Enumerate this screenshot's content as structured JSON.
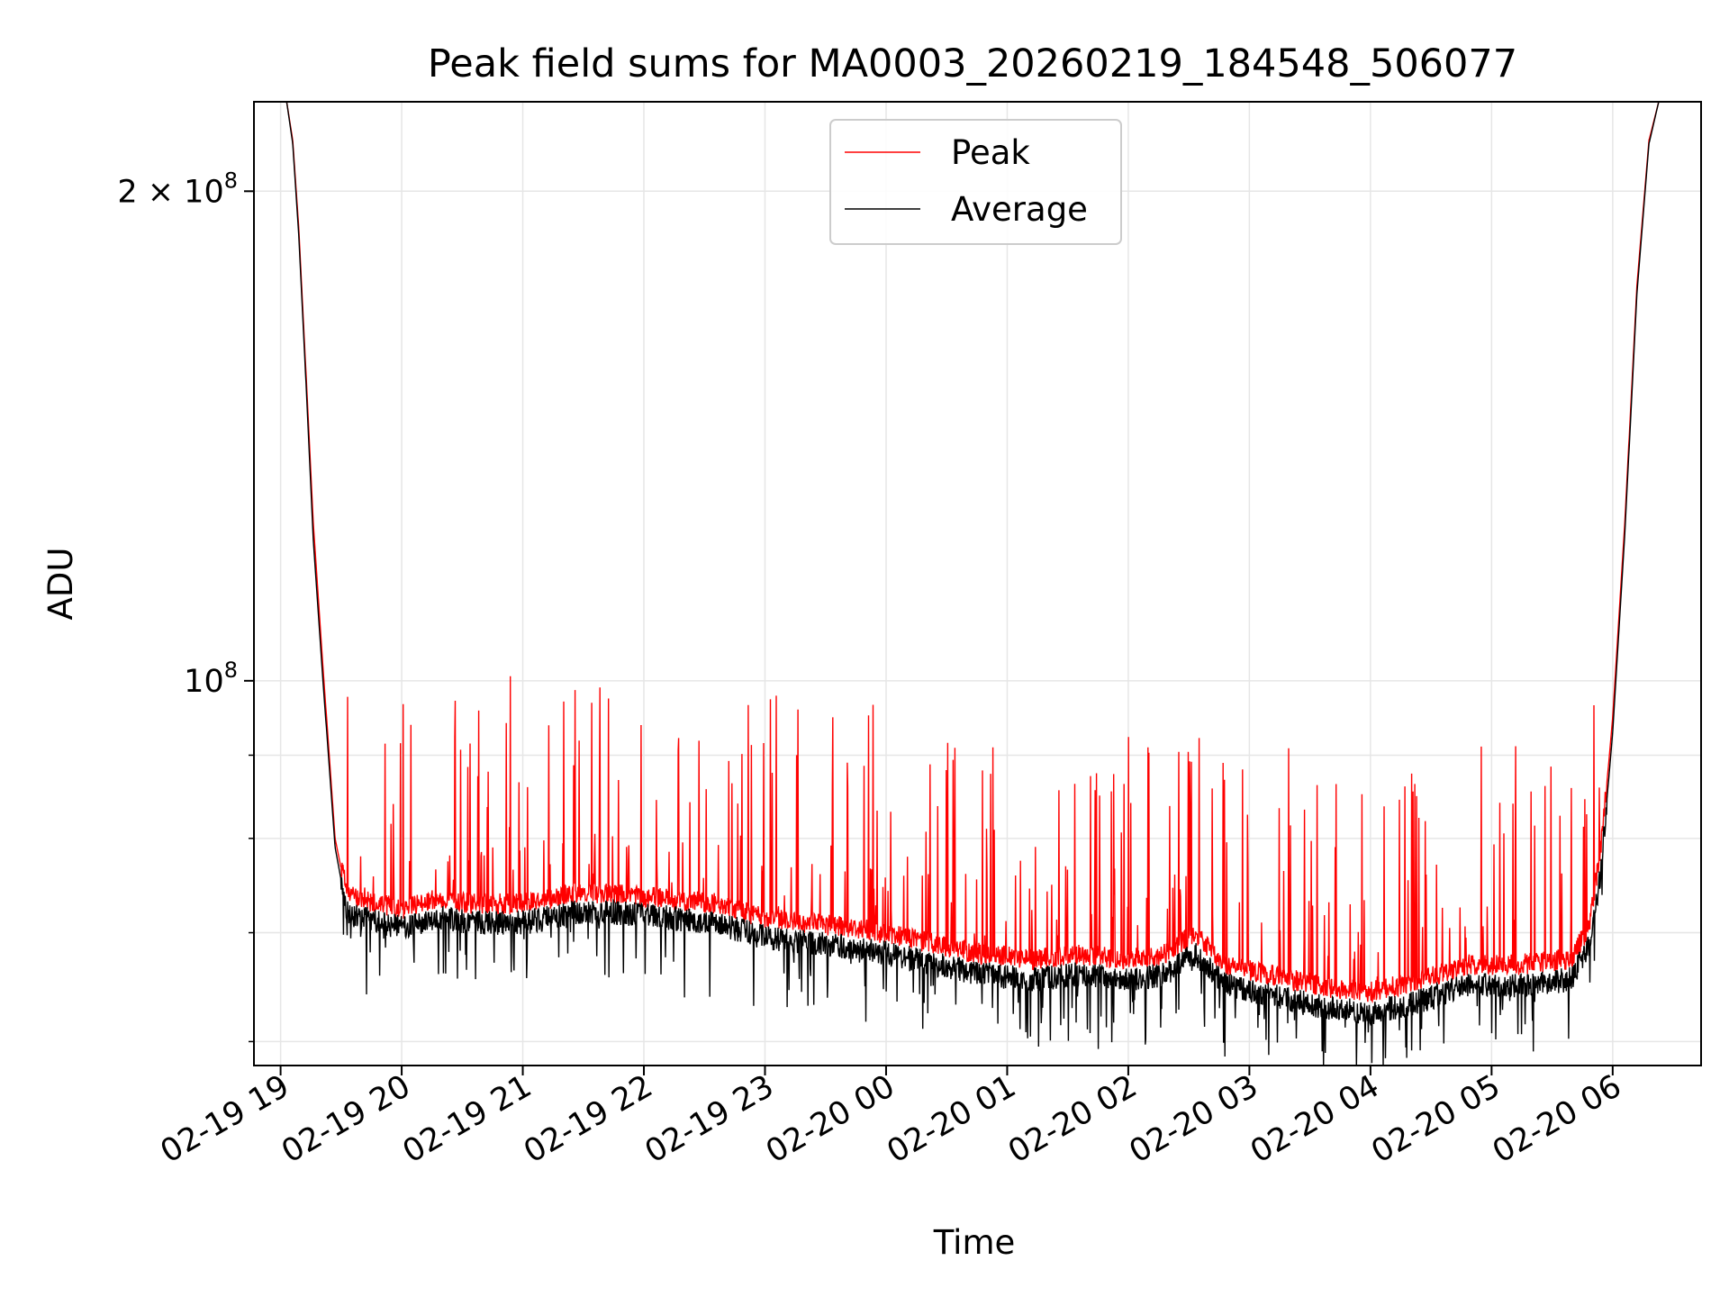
{
  "chart_data": {
    "type": "line",
    "title": "Peak field sums for MA0003_20260219_184548_506077",
    "xlabel": "Time",
    "ylabel": "ADU",
    "yscale": "log",
    "ylim": [
      58000000,
      227000000
    ],
    "xlim": [
      18.78,
      30.73
    ],
    "grid": true,
    "legend_position": "top-center",
    "x_ticks": [
      {
        "value": 19,
        "label": "02-19 19"
      },
      {
        "value": 20,
        "label": "02-19 20"
      },
      {
        "value": 21,
        "label": "02-19 21"
      },
      {
        "value": 22,
        "label": "02-19 22"
      },
      {
        "value": 23,
        "label": "02-19 23"
      },
      {
        "value": 24,
        "label": "02-20 00"
      },
      {
        "value": 25,
        "label": "02-20 01"
      },
      {
        "value": 26,
        "label": "02-20 02"
      },
      {
        "value": 27,
        "label": "02-20 03"
      },
      {
        "value": 28,
        "label": "02-20 04"
      },
      {
        "value": 29,
        "label": "02-20 05"
      },
      {
        "value": 30,
        "label": "02-20 06"
      }
    ],
    "y_major_ticks": [
      {
        "value": 100000000,
        "base": "10",
        "exp": "8"
      },
      {
        "value": 200000000,
        "base": "2 × 10",
        "exp": "8"
      }
    ],
    "y_minor_ticks": [
      60000000,
      70000000,
      80000000,
      90000000
    ],
    "series": [
      {
        "name": "Peak",
        "color": "#ff0000",
        "baseline_points": [
          [
            18.78,
            227000000
          ],
          [
            19.05,
            227000000
          ],
          [
            19.1,
            215000000
          ],
          [
            19.15,
            190000000
          ],
          [
            19.2,
            160000000
          ],
          [
            19.27,
            125000000
          ],
          [
            19.35,
            102000000
          ],
          [
            19.45,
            80000000
          ],
          [
            19.55,
            73500000
          ],
          [
            19.8,
            72500000
          ],
          [
            20.0,
            72000000
          ],
          [
            20.3,
            73000000
          ],
          [
            20.6,
            72500000
          ],
          [
            21.0,
            72500000
          ],
          [
            21.4,
            73500000
          ],
          [
            21.8,
            73500000
          ],
          [
            22.2,
            73000000
          ],
          [
            22.6,
            72500000
          ],
          [
            23.0,
            71000000
          ],
          [
            23.4,
            70500000
          ],
          [
            23.8,
            70000000
          ],
          [
            24.0,
            69500000
          ],
          [
            24.4,
            68500000
          ],
          [
            24.8,
            67500000
          ],
          [
            25.2,
            67000000
          ],
          [
            25.6,
            67500000
          ],
          [
            26.0,
            67000000
          ],
          [
            26.3,
            67500000
          ],
          [
            26.55,
            69500000
          ],
          [
            26.8,
            66500000
          ],
          [
            27.2,
            65500000
          ],
          [
            27.6,
            64500000
          ],
          [
            28.0,
            64000000
          ],
          [
            28.4,
            65000000
          ],
          [
            28.8,
            66500000
          ],
          [
            29.2,
            66500000
          ],
          [
            29.65,
            67000000
          ],
          [
            29.8,
            70000000
          ],
          [
            29.9,
            78000000
          ],
          [
            30.0,
            95000000
          ],
          [
            30.1,
            125000000
          ],
          [
            30.2,
            175000000
          ],
          [
            30.3,
            215000000
          ],
          [
            30.38,
            227000000
          ],
          [
            30.73,
            227000000
          ]
        ],
        "noise_start": 19.5,
        "noise_end": 29.95,
        "spike_max": 103000000
      },
      {
        "name": "Average",
        "color": "#000000",
        "baseline_points": [
          [
            18.78,
            227000000
          ],
          [
            19.05,
            227000000
          ],
          [
            19.1,
            214000000
          ],
          [
            19.15,
            188000000
          ],
          [
            19.2,
            158000000
          ],
          [
            19.27,
            122000000
          ],
          [
            19.35,
            100000000
          ],
          [
            19.45,
            79000000
          ],
          [
            19.55,
            72000000
          ],
          [
            19.8,
            71000000
          ],
          [
            20.0,
            70500000
          ],
          [
            20.3,
            71500000
          ],
          [
            20.6,
            71000000
          ],
          [
            21.0,
            71000000
          ],
          [
            21.4,
            72000000
          ],
          [
            21.8,
            72000000
          ],
          [
            22.2,
            71500000
          ],
          [
            22.6,
            71000000
          ],
          [
            23.0,
            69500000
          ],
          [
            23.4,
            69000000
          ],
          [
            23.8,
            68500000
          ],
          [
            24.0,
            68000000
          ],
          [
            24.4,
            67000000
          ],
          [
            24.8,
            66000000
          ],
          [
            25.2,
            65500000
          ],
          [
            25.6,
            66000000
          ],
          [
            26.0,
            65500000
          ],
          [
            26.3,
            66000000
          ],
          [
            26.55,
            68000000
          ],
          [
            26.8,
            65000000
          ],
          [
            27.2,
            64000000
          ],
          [
            27.6,
            63000000
          ],
          [
            28.0,
            62500000
          ],
          [
            28.4,
            63500000
          ],
          [
            28.8,
            65000000
          ],
          [
            29.2,
            65000000
          ],
          [
            29.65,
            65500000
          ],
          [
            29.8,
            68500000
          ],
          [
            29.9,
            76000000
          ],
          [
            30.0,
            93000000
          ],
          [
            30.1,
            123000000
          ],
          [
            30.2,
            173000000
          ],
          [
            30.3,
            214000000
          ],
          [
            30.38,
            227000000
          ],
          [
            30.73,
            227000000
          ]
        ],
        "noise_start": 19.5,
        "noise_end": 29.95,
        "dip_min": 58000000
      }
    ]
  }
}
